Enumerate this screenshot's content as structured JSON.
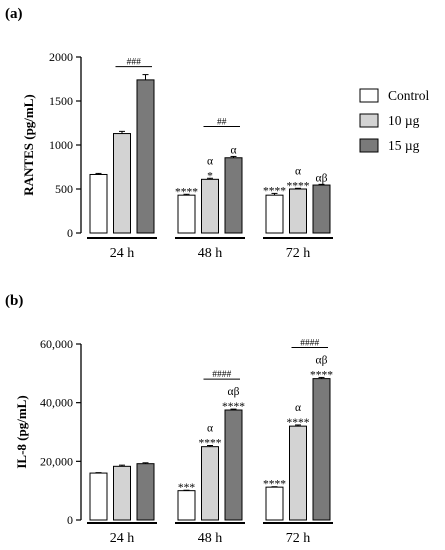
{
  "colors": {
    "Control": "#ffffff",
    "10 µg": "#d3d3d3",
    "15 µg": "#7a7a7a",
    "stroke": "#000000"
  },
  "legend": {
    "placement": "top-right",
    "entries": [
      "Control",
      "10 µg",
      "15 µg"
    ]
  },
  "chart_data": [
    {
      "panel": "(a)",
      "type": "bar",
      "ylabel": "RANTES (pg/mL)",
      "ylim": [
        0,
        2000
      ],
      "yticks": [
        "0",
        "500",
        "1000",
        "1500",
        "2000"
      ],
      "categories": [
        "24 h",
        "48 h",
        "72 h"
      ],
      "series": [
        {
          "name": "Control",
          "values": [
            665,
            430,
            430
          ],
          "errors": [
            12,
            10,
            20
          ]
        },
        {
          "name": "10 µg",
          "values": [
            1130,
            610,
            500
          ],
          "errors": [
            25,
            12,
            8
          ]
        },
        {
          "name": "15 µg",
          "values": [
            1740,
            855,
            545
          ],
          "errors": [
            60,
            15,
            8
          ]
        }
      ],
      "annotations": [
        [
          "",
          "****",
          "****"
        ],
        [
          "",
          "α|*",
          "α|****"
        ],
        [
          "",
          "α",
          "αβ"
        ]
      ],
      "brackets": [
        "###",
        "##",
        ""
      ]
    },
    {
      "panel": "(b)",
      "type": "bar",
      "ylabel": "IL-8 (pg/mL)",
      "ylim": [
        0,
        60000
      ],
      "yticks": [
        "0",
        "20,000",
        "40,000",
        "60,000"
      ],
      "categories": [
        "24 h",
        "48 h",
        "72 h"
      ],
      "series": [
        {
          "name": "Control",
          "values": [
            16000,
            10000,
            11200
          ],
          "errors": [
            150,
            150,
            150
          ]
        },
        {
          "name": "10 µg",
          "values": [
            18300,
            25000,
            32000
          ],
          "errors": [
            400,
            400,
            400
          ]
        },
        {
          "name": "15 µg",
          "values": [
            19200,
            37500,
            48200
          ],
          "errors": [
            300,
            300,
            400
          ]
        }
      ],
      "annotations": [
        [
          "",
          "***",
          "****"
        ],
        [
          "",
          "α|****",
          "α|****"
        ],
        [
          "",
          "αβ|****",
          "αβ|****"
        ]
      ],
      "brackets": [
        "",
        "####",
        "####"
      ]
    }
  ]
}
